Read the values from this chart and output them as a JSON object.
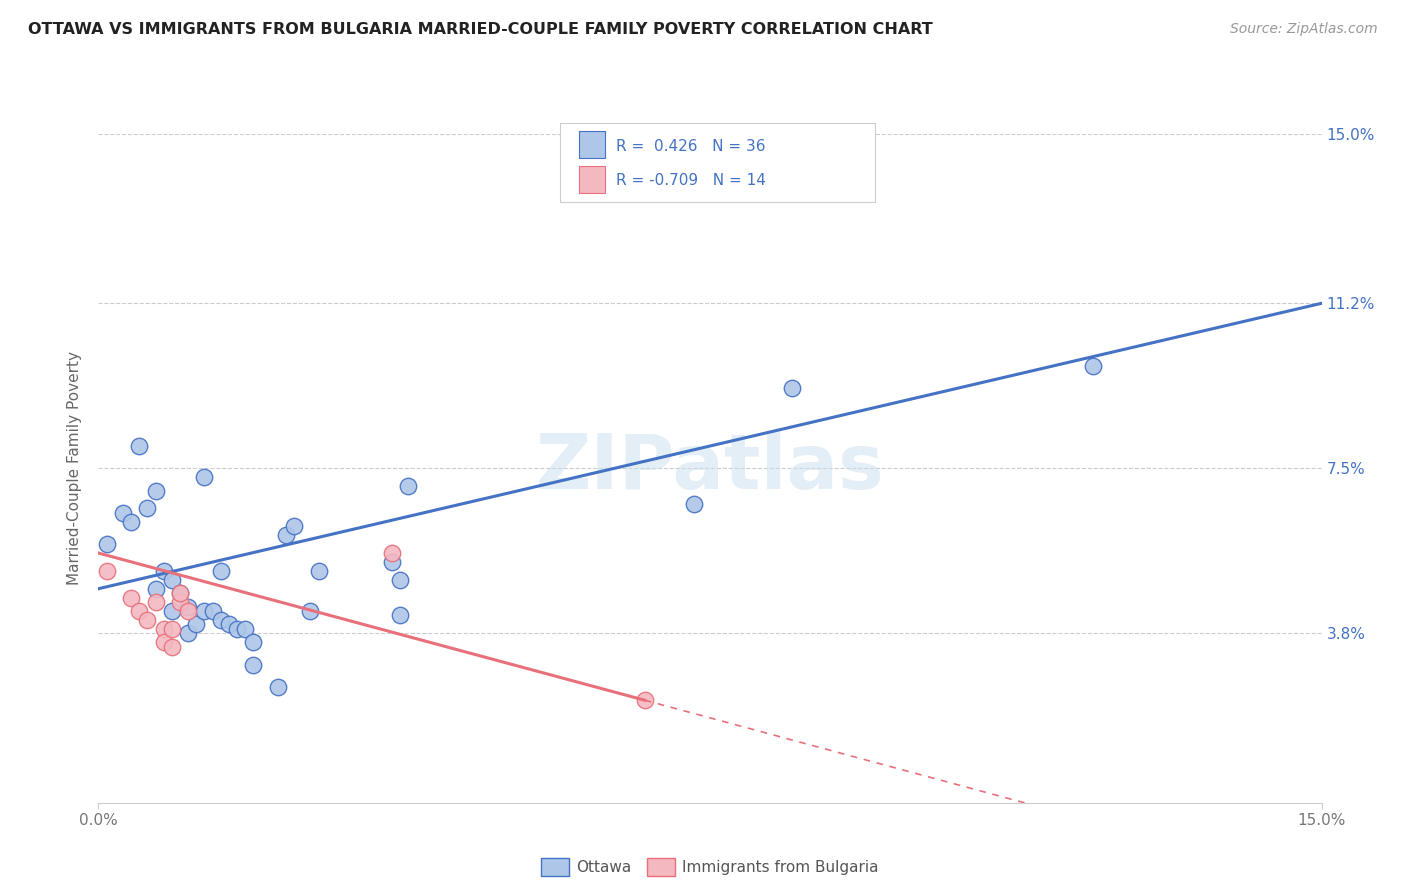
{
  "title": "OTTAWA VS IMMIGRANTS FROM BULGARIA MARRIED-COUPLE FAMILY POVERTY CORRELATION CHART",
  "source": "Source: ZipAtlas.com",
  "ylabel": "Married-Couple Family Poverty",
  "xlim": [
    0.0,
    0.15
  ],
  "ylim": [
    0.0,
    0.15
  ],
  "xtick_positions": [
    0.0,
    0.15
  ],
  "xtick_labels": [
    "0.0%",
    "15.0%"
  ],
  "ytick_values": [
    0.038,
    0.075,
    0.112,
    0.15
  ],
  "ytick_labels": [
    "3.8%",
    "7.5%",
    "11.2%",
    "15.0%"
  ],
  "background_color": "#ffffff",
  "watermark": "ZIPatlas",
  "ottawa_color": "#aec6e8",
  "bulgaria_color": "#f4b8c1",
  "ottawa_line_color": "#4472c4",
  "bulgaria_line_color": "#e8707a",
  "ottawa_scatter": [
    [
      0.001,
      0.058
    ],
    [
      0.003,
      0.065
    ],
    [
      0.004,
      0.063
    ],
    [
      0.005,
      0.08
    ],
    [
      0.006,
      0.066
    ],
    [
      0.007,
      0.07
    ],
    [
      0.007,
      0.048
    ],
    [
      0.008,
      0.052
    ],
    [
      0.009,
      0.05
    ],
    [
      0.009,
      0.043
    ],
    [
      0.01,
      0.047
    ],
    [
      0.011,
      0.038
    ],
    [
      0.011,
      0.044
    ],
    [
      0.012,
      0.04
    ],
    [
      0.013,
      0.043
    ],
    [
      0.013,
      0.073
    ],
    [
      0.014,
      0.043
    ],
    [
      0.015,
      0.052
    ],
    [
      0.015,
      0.041
    ],
    [
      0.016,
      0.04
    ],
    [
      0.017,
      0.039
    ],
    [
      0.018,
      0.039
    ],
    [
      0.019,
      0.036
    ],
    [
      0.019,
      0.031
    ],
    [
      0.023,
      0.06
    ],
    [
      0.024,
      0.062
    ],
    [
      0.022,
      0.026
    ],
    [
      0.026,
      0.043
    ],
    [
      0.027,
      0.052
    ],
    [
      0.036,
      0.054
    ],
    [
      0.037,
      0.05
    ],
    [
      0.037,
      0.042
    ],
    [
      0.038,
      0.071
    ],
    [
      0.073,
      0.067
    ],
    [
      0.085,
      0.093
    ],
    [
      0.122,
      0.098
    ]
  ],
  "bulgaria_scatter": [
    [
      0.001,
      0.052
    ],
    [
      0.004,
      0.046
    ],
    [
      0.005,
      0.043
    ],
    [
      0.006,
      0.041
    ],
    [
      0.007,
      0.045
    ],
    [
      0.008,
      0.039
    ],
    [
      0.008,
      0.036
    ],
    [
      0.009,
      0.039
    ],
    [
      0.009,
      0.035
    ],
    [
      0.01,
      0.045
    ],
    [
      0.01,
      0.047
    ],
    [
      0.011,
      0.043
    ],
    [
      0.036,
      0.056
    ],
    [
      0.067,
      0.023
    ]
  ],
  "ottawa_trend": [
    0.0,
    0.15,
    0.048,
    0.112
  ],
  "bg_solid": [
    0.0,
    0.067,
    0.056,
    0.023
  ],
  "bg_dash": [
    0.067,
    0.15,
    0.023,
    -0.018
  ],
  "grid_color": "#cccccc",
  "tick_color": "#777777",
  "title_color": "#222222",
  "source_color": "#999999",
  "label_color": "#666666",
  "right_tick_color": "#4472c4"
}
